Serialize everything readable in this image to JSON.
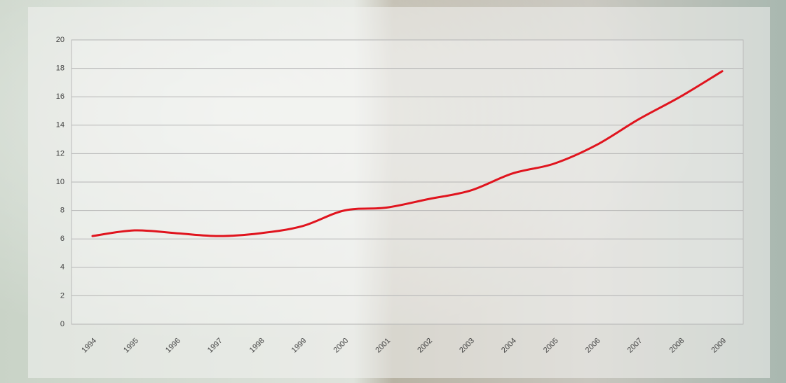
{
  "chart_data": {
    "type": "line",
    "categories": [
      "1994",
      "1995",
      "1996",
      "1997",
      "1998",
      "1999",
      "2000",
      "2001",
      "2002",
      "2003",
      "2004",
      "2005",
      "2006",
      "2007",
      "2008",
      "2009"
    ],
    "series": [
      {
        "color": "#e0141e",
        "values": [
          6.2,
          6.6,
          6.4,
          6.2,
          6.4,
          6.9,
          8.0,
          8.2,
          8.8,
          9.4,
          10.6,
          11.3,
          12.6,
          14.4,
          16.0,
          17.8
        ]
      }
    ],
    "ylim": [
      0,
      20
    ],
    "yticks": [
      0,
      2,
      4,
      6,
      8,
      10,
      12,
      14,
      16,
      18,
      20
    ],
    "grid": true
  }
}
